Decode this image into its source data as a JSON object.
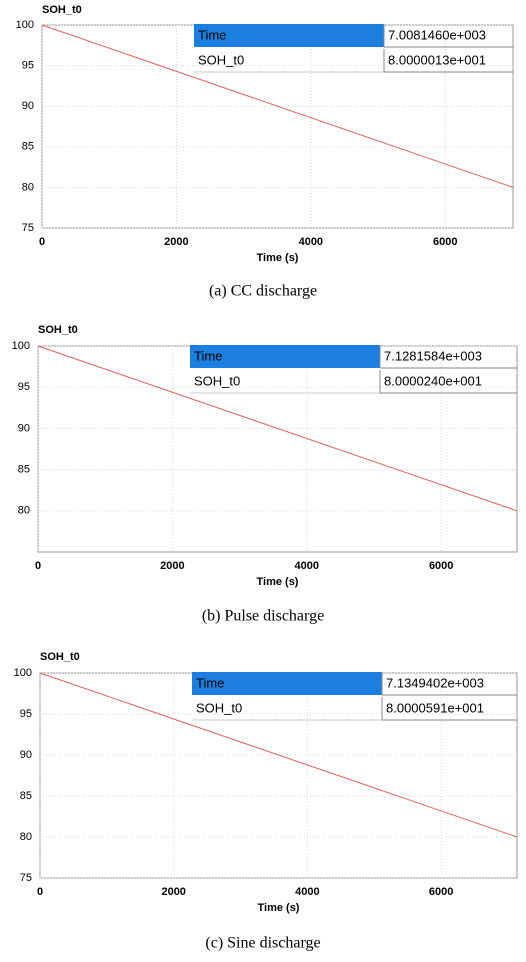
{
  "chart_data": [
    {
      "type": "line",
      "title": "SOH_t0",
      "x_label": "Time (s)",
      "caption": "(a) CC discharge",
      "x": [
        0,
        7008.146
      ],
      "values": [
        100,
        80
      ],
      "color": "#e06060",
      "xlim": [
        0,
        7008.146
      ],
      "ylim": [
        75,
        100
      ],
      "xticks": [
        0,
        2000,
        4000,
        6000
      ],
      "yticks": [
        75,
        80,
        85,
        90,
        95,
        100
      ],
      "grid": true,
      "readout": [
        [
          "Time",
          "7.0081460e+003"
        ],
        [
          "SOH_t0",
          "8.0000013e+001"
        ]
      ]
    },
    {
      "type": "line",
      "title": "SOH_t0",
      "x_label": "Time (s)",
      "caption": "(b) Pulse discharge",
      "x": [
        0,
        7128.1584
      ],
      "values": [
        100,
        80
      ],
      "color": "#e06060",
      "xlim": [
        0,
        7128.1584
      ],
      "ylim": [
        75,
        100
      ],
      "xticks": [
        0,
        2000,
        4000,
        6000
      ],
      "yticks": [
        80,
        85,
        90,
        95,
        100
      ],
      "grid": true,
      "readout": [
        [
          "Time",
          "7.1281584e+003"
        ],
        [
          "SOH_t0",
          "8.0000240e+001"
        ]
      ]
    },
    {
      "type": "line",
      "title": "SOH_t0",
      "x_label": "Time (s)",
      "caption": "(c) Sine discharge",
      "x": [
        0,
        7134.9402
      ],
      "values": [
        100,
        80
      ],
      "color": "#e06060",
      "xlim": [
        0,
        7134.9402
      ],
      "ylim": [
        75,
        100
      ],
      "xticks": [
        0,
        2000,
        4000,
        6000
      ],
      "yticks": [
        75,
        80,
        85,
        90,
        95,
        100
      ],
      "grid": true,
      "readout": [
        [
          "Time",
          "7.1349402e+003"
        ],
        [
          "SOH_t0",
          "8.0000591e+001"
        ]
      ]
    }
  ]
}
